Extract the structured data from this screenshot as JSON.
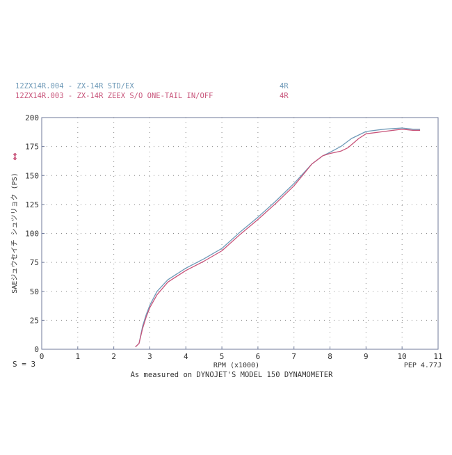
{
  "chart_data": {
    "type": "line",
    "header": [
      {
        "name": "12ZX14R.004 - ZX-14R  STD/EX",
        "run": "4R",
        "color": "#6f9ab8"
      },
      {
        "name": "12ZX14R.003 - ZX-14R  ZEEX S/O ONE-TAIL  IN/OFF",
        "run": "4R",
        "color": "#c8547a"
      }
    ],
    "ylabel": "SAEジュウセイチ シュツリョク (PS)",
    "ylabel_marker": "✱✱",
    "xlabel": "RPM (x1000)",
    "xlim": [
      0,
      11
    ],
    "ylim": [
      0,
      200
    ],
    "x_ticks": [
      "0",
      "1",
      "2",
      "3",
      "4",
      "5",
      "6",
      "7",
      "8",
      "9",
      "10",
      "11"
    ],
    "y_ticks": [
      "0",
      "25",
      "50",
      "75",
      "100",
      "125",
      "150",
      "175",
      "200"
    ],
    "grid": true,
    "smoothing": "S = 3",
    "footer_right": "PEP 4.77J",
    "footer_caption": "As measured on DYNOJET'S MODEL 150 DYNAMOMETER",
    "series": [
      {
        "name": "12ZX14R.004 - ZX-14R  STD/EX",
        "color": "#6f9ab8",
        "points": [
          [
            2.6,
            2
          ],
          [
            2.7,
            5
          ],
          [
            2.8,
            20
          ],
          [
            2.9,
            30
          ],
          [
            3.0,
            38
          ],
          [
            3.2,
            50
          ],
          [
            3.5,
            60
          ],
          [
            4.0,
            70
          ],
          [
            4.5,
            78
          ],
          [
            5.0,
            87
          ],
          [
            5.5,
            101
          ],
          [
            6.0,
            114
          ],
          [
            6.5,
            128
          ],
          [
            7.0,
            143
          ],
          [
            7.5,
            160
          ],
          [
            7.8,
            167
          ],
          [
            8.0,
            170
          ],
          [
            8.3,
            175
          ],
          [
            8.6,
            182
          ],
          [
            9.0,
            188
          ],
          [
            9.5,
            190
          ],
          [
            10.0,
            191
          ],
          [
            10.3,
            190
          ],
          [
            10.5,
            190
          ]
        ]
      },
      {
        "name": "12ZX14R.003 - ZX-14R  ZEEX S/O ONE-TAIL  IN/OFF",
        "color": "#c8547a",
        "points": [
          [
            2.6,
            2
          ],
          [
            2.7,
            5
          ],
          [
            2.8,
            18
          ],
          [
            2.9,
            28
          ],
          [
            3.0,
            36
          ],
          [
            3.2,
            47
          ],
          [
            3.5,
            58
          ],
          [
            4.0,
            68
          ],
          [
            4.5,
            76
          ],
          [
            5.0,
            85
          ],
          [
            5.5,
            99
          ],
          [
            6.0,
            112
          ],
          [
            6.5,
            126
          ],
          [
            7.0,
            141
          ],
          [
            7.5,
            160
          ],
          [
            7.8,
            167
          ],
          [
            8.0,
            169
          ],
          [
            8.3,
            171
          ],
          [
            8.5,
            174
          ],
          [
            8.8,
            182
          ],
          [
            9.0,
            186
          ],
          [
            9.5,
            188
          ],
          [
            10.0,
            190
          ],
          [
            10.3,
            189
          ],
          [
            10.5,
            189
          ]
        ]
      }
    ]
  }
}
